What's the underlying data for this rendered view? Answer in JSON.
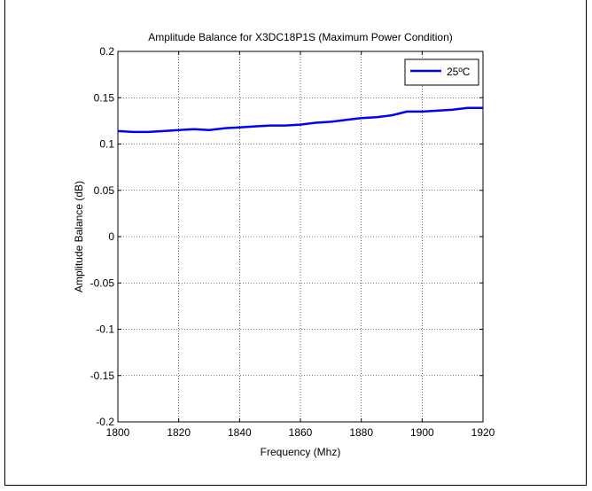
{
  "chart_data": {
    "type": "line",
    "title": "Amplitude Balance for X3DC18P1S (Maximum Power Condition)",
    "xlabel": "Frequency (Mhz)",
    "ylabel": "Amplitude Balance (dB)",
    "xlim": [
      1800,
      1920
    ],
    "ylim": [
      -0.2,
      0.2
    ],
    "xticks": [
      1800,
      1820,
      1840,
      1860,
      1880,
      1900,
      1920
    ],
    "xtick_labels": [
      "1800",
      "1820",
      "1840",
      "1860",
      "1880",
      "1900",
      "1920"
    ],
    "yticks": [
      -0.2,
      -0.15,
      -0.1,
      -0.05,
      0,
      0.05,
      0.1,
      0.15,
      0.2
    ],
    "ytick_labels": [
      "-0.2",
      "-0.15",
      "-0.1",
      "-0.05",
      "0",
      "0.05",
      "0.1",
      "0.15",
      "0.2"
    ],
    "grid": true,
    "legend_position": "top-right",
    "series": [
      {
        "name": "25ºC",
        "color": "#0000ff",
        "x": [
          1800,
          1805,
          1810,
          1815,
          1820,
          1825,
          1830,
          1835,
          1840,
          1845,
          1850,
          1855,
          1860,
          1865,
          1870,
          1875,
          1880,
          1885,
          1890,
          1895,
          1900,
          1905,
          1910,
          1915,
          1920
        ],
        "y": [
          0.114,
          0.113,
          0.113,
          0.114,
          0.115,
          0.116,
          0.115,
          0.117,
          0.118,
          0.119,
          0.12,
          0.12,
          0.121,
          0.123,
          0.124,
          0.126,
          0.128,
          0.129,
          0.131,
          0.135,
          0.135,
          0.136,
          0.137,
          0.139,
          0.139
        ]
      }
    ]
  }
}
